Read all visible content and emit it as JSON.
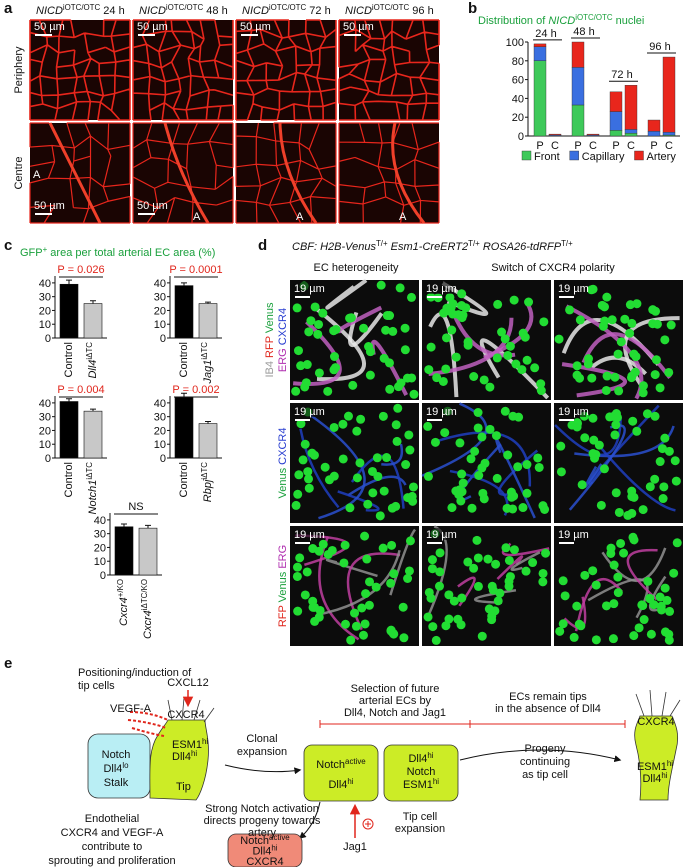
{
  "panel_a": {
    "letter": "a",
    "columns": [
      [
        {
          "text": "NICD",
          "italic": true
        },
        {
          "sup": "iOTC/OTC"
        },
        {
          "text": " 24 h"
        }
      ],
      [
        {
          "text": "NICD",
          "italic": true
        },
        {
          "sup": "iOTC/OTC"
        },
        {
          "text": " 48 h"
        }
      ],
      [
        {
          "text": "NICD",
          "italic": true
        },
        {
          "sup": "iOTC/OTC"
        },
        {
          "text": " 72 h"
        }
      ],
      [
        {
          "text": "NICD",
          "italic": true
        },
        {
          "sup": "iOTC/OTC"
        },
        {
          "text": " 96 h"
        }
      ]
    ],
    "rows": [
      "Periphery",
      "Centre"
    ],
    "images": [
      [
        {
          "scale_bar": "50 µm"
        },
        {
          "scale_bar": "50 µm"
        },
        {
          "scale_bar": "50 µm"
        },
        {
          "scale_bar": "50 µm"
        }
      ],
      [
        {
          "scale_bar": "50 µm",
          "artery": "A"
        },
        {
          "scale_bar": "50 µm",
          "artery": "A"
        },
        {
          "artery": "A"
        },
        {
          "artery": "A"
        }
      ]
    ]
  },
  "panel_b": {
    "letter": "b",
    "title": [
      {
        "text": "Distribution of "
      },
      {
        "text": "NICD",
        "italic": true
      },
      {
        "sup": "iOTC/OTC"
      },
      {
        "text": " nuclei"
      }
    ],
    "title_color": "#1aa03c",
    "chart": {
      "type": "bar",
      "stacked": true,
      "groups": [
        "24 h",
        "48 h",
        "72 h",
        "96 h"
      ],
      "categories": [
        "P",
        "C",
        "P",
        "C",
        "P",
        "C",
        "P",
        "C"
      ],
      "series": [
        {
          "name": "Front",
          "color": "#3ec95a",
          "values": [
            80,
            0,
            33,
            0,
            6,
            3,
            0,
            1
          ]
        },
        {
          "name": "Capillary",
          "color": "#3a6fe0",
          "values": [
            15,
            1,
            40,
            1,
            20,
            4,
            5,
            3
          ]
        },
        {
          "name": "Artery",
          "color": "#e8261c",
          "values": [
            3,
            1,
            27,
            1,
            21,
            47,
            12,
            80
          ]
        }
      ],
      "ylim": [
        0,
        100
      ],
      "yticks": [
        0,
        20,
        40,
        60,
        80,
        100
      ]
    }
  },
  "panel_c": {
    "letter": "c",
    "title": [
      {
        "text": "GFP"
      },
      {
        "sup": "+"
      },
      {
        "text": " area per total arterial EC area (%)"
      }
    ],
    "title_color": "#1aa03c",
    "charts": [
      {
        "type": "bar",
        "categories": [
          [
            {
              "text": "Control"
            }
          ],
          [
            {
              "text": "Dll4",
              "italic": true
            },
            {
              "sup": "iΔTC"
            }
          ]
        ],
        "values": [
          39,
          25
        ],
        "errors": [
          3,
          2
        ],
        "colors": [
          "#000000",
          "#c8c8c8"
        ],
        "annotation": "P = 0.026",
        "annotation_color": "#e0261c",
        "ylim": [
          0,
          45
        ],
        "yticks": [
          0,
          10,
          20,
          30,
          40
        ]
      },
      {
        "type": "bar",
        "categories": [
          [
            {
              "text": "Control"
            }
          ],
          [
            {
              "text": "Jag1",
              "italic": true
            },
            {
              "sup": "iΔTC"
            }
          ]
        ],
        "values": [
          38,
          25
        ],
        "errors": [
          2,
          1
        ],
        "colors": [
          "#000000",
          "#c8c8c8"
        ],
        "annotation": "P = 0.0001",
        "annotation_color": "#e0261c",
        "ylim": [
          0,
          45
        ],
        "yticks": [
          0,
          10,
          20,
          30,
          40
        ]
      },
      {
        "type": "bar",
        "categories": [
          [
            {
              "text": "Control"
            }
          ],
          [
            {
              "text": "Notch1",
              "italic": true
            },
            {
              "sup": "iΔTC"
            }
          ]
        ],
        "values": [
          41,
          34
        ],
        "errors": [
          2,
          1.5
        ],
        "colors": [
          "#000000",
          "#c8c8c8"
        ],
        "annotation": "P = 0.004",
        "annotation_color": "#e0261c",
        "ylim": [
          0,
          45
        ],
        "yticks": [
          0,
          10,
          20,
          30,
          40
        ]
      },
      {
        "type": "bar",
        "categories": [
          [
            {
              "text": "Control"
            }
          ],
          [
            {
              "text": "Rbpj",
              "italic": true
            },
            {
              "sup": "iΔTC"
            }
          ]
        ],
        "values": [
          44,
          25
        ],
        "errors": [
          3,
          1.5
        ],
        "colors": [
          "#000000",
          "#c8c8c8"
        ],
        "annotation": "P = 0.002",
        "annotation_color": "#e0261c",
        "ylim": [
          0,
          45
        ],
        "yticks": [
          0,
          10,
          20,
          30,
          40
        ]
      },
      {
        "type": "bar",
        "categories": [
          [
            {
              "text": "Cxcr4",
              "italic": true
            },
            {
              "sup": "+/KO"
            }
          ],
          [
            {
              "text": "Cxcr4",
              "italic": true
            },
            {
              "sup": "iΔTC/KO"
            }
          ]
        ],
        "values": [
          35,
          34
        ],
        "errors": [
          2,
          2
        ],
        "colors": [
          "#000000",
          "#c8c8c8"
        ],
        "annotation": "NS",
        "annotation_color": "#111111",
        "ylim": [
          0,
          45
        ],
        "yticks": [
          0,
          10,
          20,
          30,
          40
        ]
      }
    ]
  },
  "panel_d": {
    "letter": "d",
    "header": [
      {
        "text": "CBF: H2B-Venus",
        "italic": true
      },
      {
        "sup": "T/+"
      },
      {
        "text": "  Esm1-CreERT2",
        "italic": true
      },
      {
        "sup": "T/+"
      },
      {
        "text": "  ROSA26-tdRFP",
        "italic": true
      },
      {
        "sup": "T/+"
      }
    ],
    "column_headers": [
      "EC heterogeneity",
      "Switch of CXCR4 polarity"
    ],
    "row_labels": [
      [
        [
          {
            "text": "IB4 ",
            "color": "#9a9a9a"
          },
          {
            "text": "RFP ",
            "color": "#e0261c"
          },
          {
            "text": "Venus",
            "color": "#1aa03c"
          }
        ],
        [
          {
            "text": "ERG ",
            "color": "#b02fb0"
          },
          {
            "text": "CXCR4",
            "color": "#2a3fd0"
          }
        ]
      ],
      [
        [
          {
            "text": "Venus ",
            "color": "#1aa03c"
          },
          {
            "text": "CXCR4",
            "color": "#2a3fd0"
          }
        ]
      ],
      [
        [
          {
            "text": "RFP ",
            "color": "#e0261c"
          },
          {
            "text": "Venus ",
            "color": "#1aa03c"
          },
          {
            "text": "ERG",
            "color": "#b02fb0"
          }
        ]
      ]
    ],
    "scale_bars": [
      [
        "19 µm",
        "19 µm",
        "19 µm"
      ],
      [
        "19 µm",
        "19 µm",
        "19 µm"
      ],
      [
        "19 µm",
        "19 µm",
        "19 µm"
      ]
    ]
  },
  "panel_e": {
    "letter": "e",
    "positioning": [
      "Positioning/induction of",
      "tip cells"
    ],
    "cxcl12": [
      "CXCL12"
    ],
    "vegfa": [
      "VEGF-A"
    ],
    "cxcr4": [
      "CXCR4"
    ],
    "tip_markers": [
      [
        {
          "text": "ESM1"
        },
        {
          "sup": "hi"
        }
      ],
      [
        {
          "text": "Dll4"
        },
        {
          "sup": "hi"
        }
      ]
    ],
    "stalk": [
      "Notch",
      [
        {
          "text": "Dll4"
        },
        {
          "sup": "lo"
        }
      ],
      "Stalk"
    ],
    "tip": [
      "Tip"
    ],
    "endothelial": [
      "Endothelial",
      "CXCR4 and VEGF-A",
      "contribute to",
      "sprouting and proliferation"
    ],
    "clonal": [
      "Clonal",
      "expansion"
    ],
    "selection": [
      "Selection of future",
      "arterial ECs by",
      "Dll4, Notch and Jag1"
    ],
    "remain": [
      "ECs remain tips",
      "in the absence of Dll4"
    ],
    "box_arterial": [
      [
        {
          "text": "Notch"
        },
        {
          "sup": "active"
        }
      ],
      [
        {
          "text": "Dll4"
        },
        {
          "sup": "hi"
        }
      ]
    ],
    "box_tip": [
      [
        {
          "text": "Dll4"
        },
        {
          "sup": "hi"
        }
      ],
      "Notch",
      [
        {
          "text": "ESM1"
        },
        {
          "sup": "hi"
        }
      ]
    ],
    "progeny": [
      "Progeny",
      "continuing",
      "as tip cell"
    ],
    "strong": [
      "Strong Notch activation",
      "directs progeny towards",
      "artery"
    ],
    "tip_expansion": [
      "Tip cell",
      "expansion"
    ],
    "jag1": [
      "Jag1"
    ],
    "box_artery": [
      [
        {
          "text": "Notch"
        },
        {
          "sup": "active"
        }
      ],
      [
        {
          "text": "Dll4"
        },
        {
          "sup": "hi"
        }
      ],
      "CXCR4"
    ],
    "right_cxcr4": [
      "CXCR4"
    ],
    "right_markers": [
      [
        {
          "text": "ESM1"
        },
        {
          "sup": "hi"
        }
      ],
      [
        {
          "text": "Dll4"
        },
        {
          "sup": "hi"
        }
      ]
    ]
  }
}
